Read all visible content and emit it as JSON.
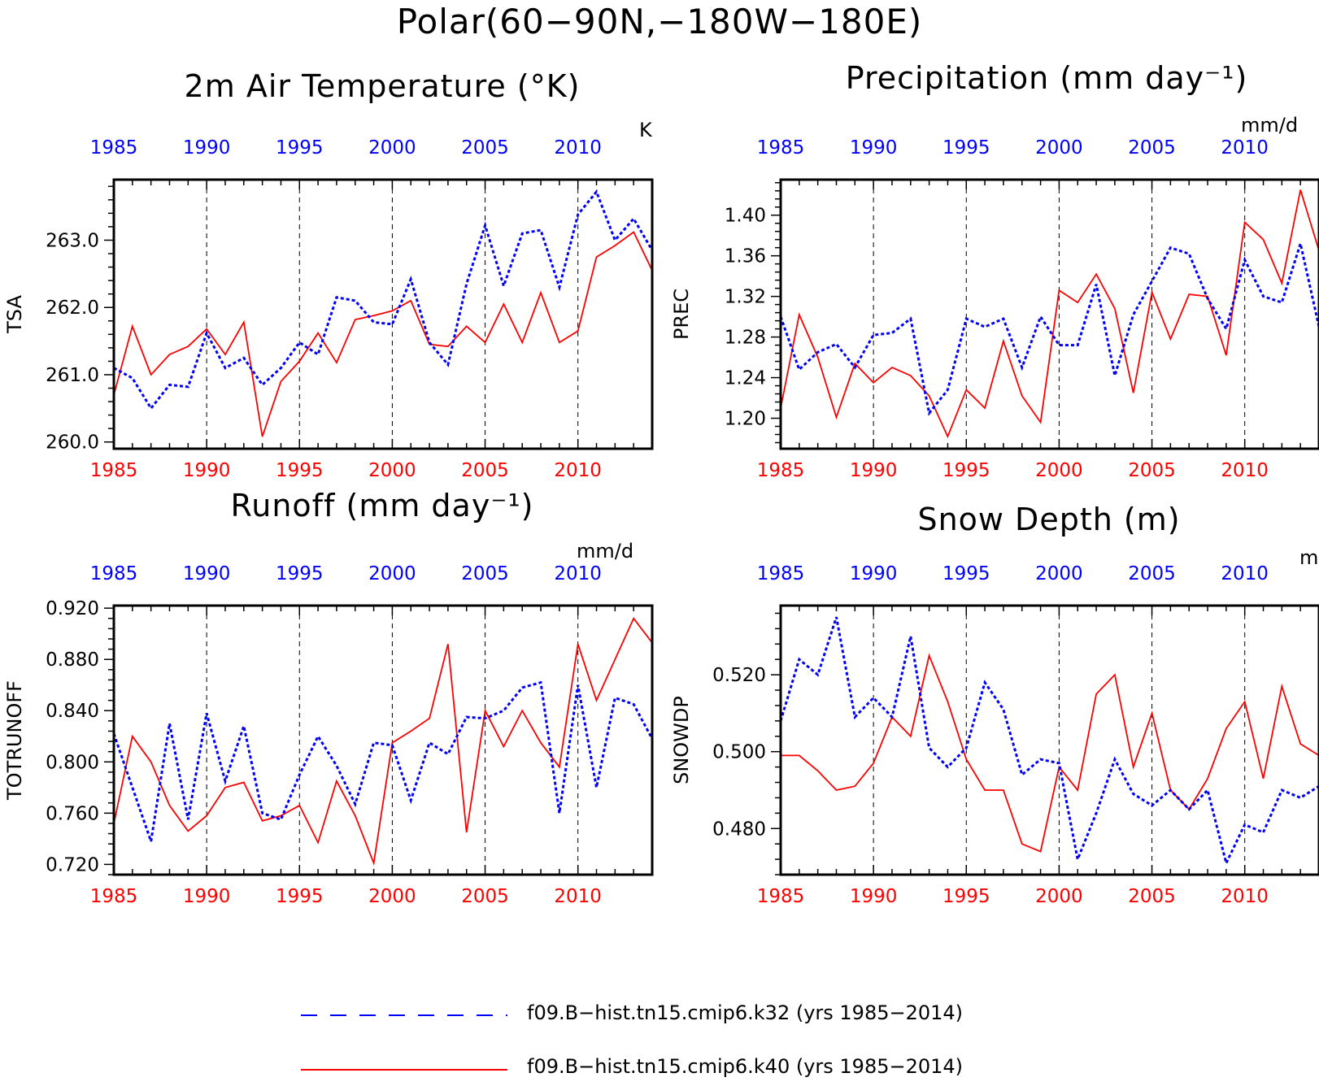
{
  "figure": {
    "title": "Polar(60−90N,−180W−180E)"
  },
  "colors": {
    "k32": "#0000ff",
    "k40": "#ff0000",
    "axis": "#000000"
  },
  "legend": {
    "entries": [
      {
        "label": "f09.B−hist.tn15.cmip6.k32 (yrs 1985−2014)",
        "color": "#0000ff",
        "style": "dashed"
      },
      {
        "label": "f09.B−hist.tn15.cmip6.k40 (yrs 1985−2014)",
        "color": "#ff0000",
        "style": "solid"
      }
    ]
  },
  "chart_data": [
    {
      "type": "line",
      "title": "2m Air Temperature (°K)",
      "units": "K",
      "ylabel": "TSA",
      "xlim": [
        1985,
        2014
      ],
      "ylim": [
        259.9,
        263.9
      ],
      "yticks": [
        260.0,
        261.0,
        262.0,
        263.0
      ],
      "yticklabels": [
        "260.0",
        "261.0",
        "262.0",
        "263.0"
      ],
      "xticks": [
        1985,
        1990,
        1995,
        2000,
        2005,
        2010
      ],
      "x": [
        1985,
        1986,
        1987,
        1988,
        1989,
        1990,
        1991,
        1992,
        1993,
        1994,
        1995,
        1996,
        1997,
        1998,
        1999,
        2000,
        2001,
        2002,
        2003,
        2004,
        2005,
        2006,
        2007,
        2008,
        2009,
        2010,
        2011,
        2012,
        2013,
        2014
      ],
      "series": [
        {
          "values": [
            261.1,
            260.95,
            260.5,
            260.85,
            260.82,
            261.62,
            261.1,
            261.25,
            260.85,
            261.1,
            261.48,
            261.3,
            262.15,
            262.1,
            261.78,
            261.75,
            262.42,
            261.48,
            261.15,
            262.35,
            263.22,
            262.32,
            263.1,
            263.15,
            262.3,
            263.38,
            263.72,
            263.0,
            263.32,
            262.85
          ]
        },
        {
          "values": [
            260.7,
            261.72,
            261.0,
            261.3,
            261.42,
            261.68,
            261.3,
            261.78,
            260.08,
            260.9,
            261.2,
            261.62,
            261.18,
            261.82,
            261.88,
            261.95,
            262.1,
            261.45,
            261.42,
            261.72,
            261.48,
            262.05,
            261.48,
            262.22,
            261.48,
            261.65,
            262.75,
            262.92,
            263.12,
            262.55
          ]
        }
      ]
    },
    {
      "type": "line",
      "title": "Precipitation (mm day⁻¹)",
      "units": "mm/d",
      "ylabel": "PREC",
      "xlim": [
        1985,
        2014
      ],
      "ylim": [
        1.17,
        1.435
      ],
      "yticks": [
        1.2,
        1.24,
        1.28,
        1.32,
        1.36,
        1.4
      ],
      "yticklabels": [
        "1.20",
        "1.24",
        "1.28",
        "1.32",
        "1.36",
        "1.40"
      ],
      "xticks": [
        1985,
        1990,
        1995,
        2000,
        2005,
        2010
      ],
      "x": [
        1985,
        1986,
        1987,
        1988,
        1989,
        1990,
        1991,
        1992,
        1993,
        1994,
        1995,
        1996,
        1997,
        1998,
        1999,
        2000,
        2001,
        2002,
        2003,
        2004,
        2005,
        2006,
        2007,
        2008,
        2009,
        2010,
        2011,
        2012,
        2013,
        2014
      ],
      "series": [
        {
          "values": [
            1.3,
            1.248,
            1.265,
            1.273,
            1.25,
            1.282,
            1.284,
            1.298,
            1.205,
            1.228,
            1.298,
            1.29,
            1.298,
            1.25,
            1.3,
            1.272,
            1.272,
            1.332,
            1.242,
            1.302,
            1.335,
            1.368,
            1.362,
            1.318,
            1.288,
            1.356,
            1.32,
            1.314,
            1.372,
            1.29
          ]
        },
        {
          "values": [
            1.21,
            1.302,
            1.26,
            1.201,
            1.254,
            1.235,
            1.25,
            1.242,
            1.222,
            1.182,
            1.228,
            1.21,
            1.276,
            1.222,
            1.196,
            1.326,
            1.314,
            1.342,
            1.308,
            1.225,
            1.324,
            1.278,
            1.322,
            1.32,
            1.262,
            1.393,
            1.376,
            1.333,
            1.425,
            1.365
          ]
        }
      ]
    },
    {
      "type": "line",
      "title": "Runoff (mm day⁻¹)",
      "units": "mm/d",
      "ylabel": "TOTRUNOFF",
      "xlim": [
        1985,
        2014
      ],
      "ylim": [
        0.712,
        0.922
      ],
      "yticks": [
        0.72,
        0.76,
        0.8,
        0.84,
        0.88,
        0.92
      ],
      "yticklabels": [
        "0.720",
        "0.760",
        "0.800",
        "0.840",
        "0.880",
        "0.920"
      ],
      "xticks": [
        1985,
        1990,
        1995,
        2000,
        2005,
        2010
      ],
      "x": [
        1985,
        1986,
        1987,
        1988,
        1989,
        1990,
        1991,
        1992,
        1993,
        1994,
        1995,
        1996,
        1997,
        1998,
        1999,
        2000,
        2001,
        2002,
        2003,
        2004,
        2005,
        2006,
        2007,
        2008,
        2009,
        2010,
        2011,
        2012,
        2013,
        2014
      ],
      "series": [
        {
          "values": [
            0.822,
            0.78,
            0.738,
            0.83,
            0.755,
            0.838,
            0.785,
            0.828,
            0.76,
            0.755,
            0.79,
            0.82,
            0.797,
            0.767,
            0.815,
            0.813,
            0.77,
            0.815,
            0.806,
            0.835,
            0.834,
            0.84,
            0.858,
            0.862,
            0.76,
            0.86,
            0.78,
            0.85,
            0.845,
            0.818
          ]
        },
        {
          "values": [
            0.752,
            0.82,
            0.8,
            0.766,
            0.746,
            0.758,
            0.78,
            0.784,
            0.754,
            0.758,
            0.766,
            0.737,
            0.785,
            0.758,
            0.721,
            0.815,
            0.824,
            0.834,
            0.892,
            0.745,
            0.84,
            0.812,
            0.84,
            0.815,
            0.796,
            0.892,
            0.848,
            0.88,
            0.912,
            0.893
          ]
        }
      ]
    },
    {
      "type": "line",
      "title": "Snow Depth (m)",
      "units": "m",
      "ylabel": "SNOWDP",
      "xlim": [
        1985,
        2014
      ],
      "ylim": [
        0.468,
        0.538
      ],
      "yticks": [
        0.48,
        0.5,
        0.52
      ],
      "yticklabels": [
        "0.480",
        "0.500",
        "0.520"
      ],
      "xticks": [
        1985,
        1990,
        1995,
        2000,
        2005,
        2010
      ],
      "x": [
        1985,
        1986,
        1987,
        1988,
        1989,
        1990,
        1991,
        1992,
        1993,
        1994,
        1995,
        1996,
        1997,
        1998,
        1999,
        2000,
        2001,
        2002,
        2003,
        2004,
        2005,
        2006,
        2007,
        2008,
        2009,
        2010,
        2011,
        2012,
        2013,
        2014
      ],
      "series": [
        {
          "values": [
            0.508,
            0.524,
            0.52,
            0.535,
            0.509,
            0.514,
            0.509,
            0.53,
            0.501,
            0.496,
            0.501,
            0.518,
            0.511,
            0.494,
            0.498,
            0.497,
            0.472,
            0.484,
            0.498,
            0.489,
            0.486,
            0.49,
            0.485,
            0.49,
            0.471,
            0.481,
            0.479,
            0.49,
            0.488,
            0.491
          ]
        },
        {
          "values": [
            0.499,
            0.499,
            0.495,
            0.49,
            0.491,
            0.497,
            0.509,
            0.504,
            0.525,
            0.513,
            0.498,
            0.49,
            0.49,
            0.476,
            0.474,
            0.496,
            0.49,
            0.515,
            0.52,
            0.496,
            0.51,
            0.49,
            0.485,
            0.493,
            0.506,
            0.513,
            0.493,
            0.517,
            0.502,
            0.499
          ]
        }
      ]
    }
  ]
}
